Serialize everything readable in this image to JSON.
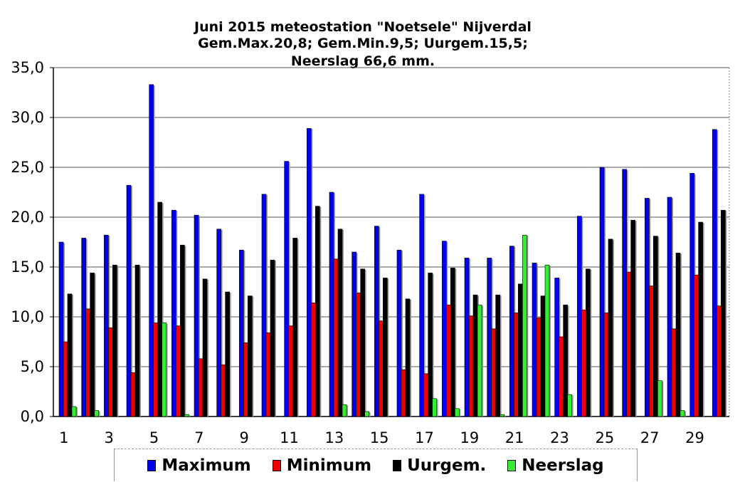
{
  "chart_data": {
    "type": "bar",
    "title": "Juni 2015 meteostation \"Noetsele\" Nijverdal",
    "subtitle": "Gem.Max.20,8; Gem.Min.9,5; Uurgem.15,5;",
    "subtitle2": "Neerslag 66,6 mm.",
    "xlabel": "",
    "ylabel": "",
    "ylim": [
      0,
      35
    ],
    "yticks": [
      "0,0",
      "5,0",
      "10,0",
      "15,0",
      "20,0",
      "25,0",
      "30,0",
      "35,0"
    ],
    "grid": true,
    "legend_position": "bottom",
    "categories": [
      1,
      2,
      3,
      4,
      5,
      6,
      7,
      8,
      9,
      10,
      11,
      12,
      13,
      14,
      15,
      16,
      17,
      18,
      19,
      20,
      21,
      22,
      23,
      24,
      25,
      26,
      27,
      28,
      29,
      30
    ],
    "x_tick_labels": [
      "1",
      "3",
      "5",
      "7",
      "9",
      "11",
      "13",
      "15",
      "17",
      "19",
      "21",
      "23",
      "25",
      "27",
      "29"
    ],
    "series": [
      {
        "name": "Maximum",
        "color": "#0000ee",
        "values": [
          17.5,
          17.9,
          18.2,
          23.2,
          33.3,
          20.7,
          20.2,
          18.8,
          16.7,
          22.3,
          25.6,
          28.9,
          22.5,
          16.5,
          19.1,
          16.7,
          22.3,
          17.6,
          15.9,
          15.9,
          17.1,
          15.4,
          13.9,
          20.1,
          25.0,
          24.8,
          21.9,
          22.0,
          24.4,
          28.8
        ]
      },
      {
        "name": "Minimum",
        "color": "#ee0000",
        "values": [
          7.5,
          10.8,
          8.9,
          4.4,
          9.4,
          9.1,
          5.8,
          5.2,
          7.4,
          8.4,
          9.1,
          11.4,
          15.8,
          12.4,
          9.6,
          4.7,
          4.3,
          11.2,
          10.1,
          8.8,
          10.4,
          9.9,
          8.0,
          10.7,
          10.4,
          14.5,
          13.1,
          8.8,
          14.2,
          11.1
        ]
      },
      {
        "name": "Uurgem.",
        "color": "#000000",
        "values": [
          12.3,
          14.4,
          15.2,
          15.2,
          21.5,
          17.2,
          13.8,
          12.5,
          12.1,
          15.7,
          17.9,
          21.1,
          18.8,
          14.8,
          13.9,
          11.8,
          14.4,
          14.9,
          12.2,
          12.2,
          13.3,
          12.1,
          11.2,
          14.8,
          17.8,
          19.7,
          18.1,
          16.4,
          19.5,
          20.7
        ]
      },
      {
        "name": "Neerslag",
        "color": "#33ee33",
        "values": [
          1.0,
          0.6,
          0.0,
          0.0,
          9.4,
          0.2,
          0.0,
          0.0,
          0.0,
          0.0,
          0.0,
          0.0,
          1.2,
          0.5,
          0.0,
          0.0,
          1.8,
          0.8,
          11.2,
          0.2,
          18.2,
          15.2,
          2.2,
          0.0,
          0.0,
          0.0,
          3.6,
          0.6,
          0.0,
          0.0
        ]
      }
    ]
  }
}
